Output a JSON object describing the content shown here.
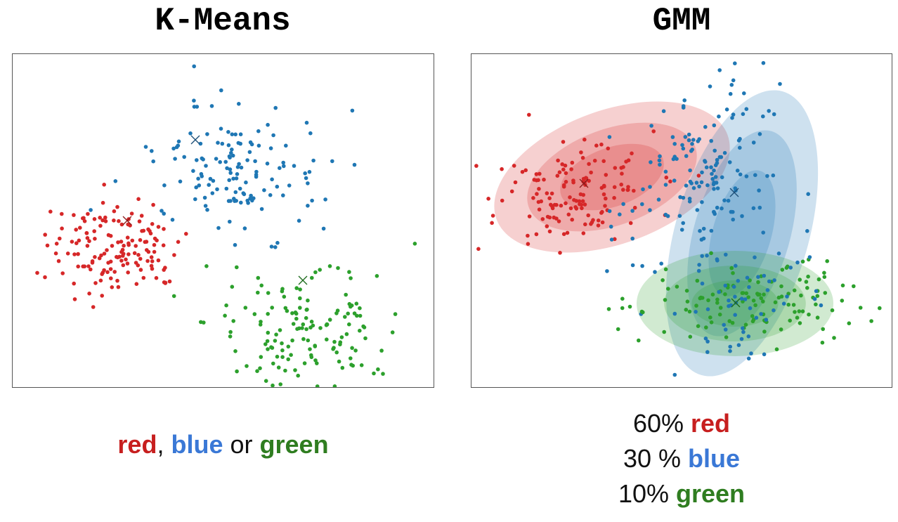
{
  "kmeans": {
    "title": "K-Means",
    "caption": {
      "red": "red",
      "sep1": ",",
      "blue": "blue",
      "sep2": "or",
      "green": "green"
    }
  },
  "gmm": {
    "title": "GMM",
    "lines": [
      {
        "pct": "60%",
        "word": "red"
      },
      {
        "pct": "30 %",
        "word": "blue"
      },
      {
        "pct": "10%",
        "word": "green"
      }
    ]
  },
  "colors": {
    "red": "#d62728",
    "blue": "#1f77b4",
    "green": "#2ca02c"
  }
}
